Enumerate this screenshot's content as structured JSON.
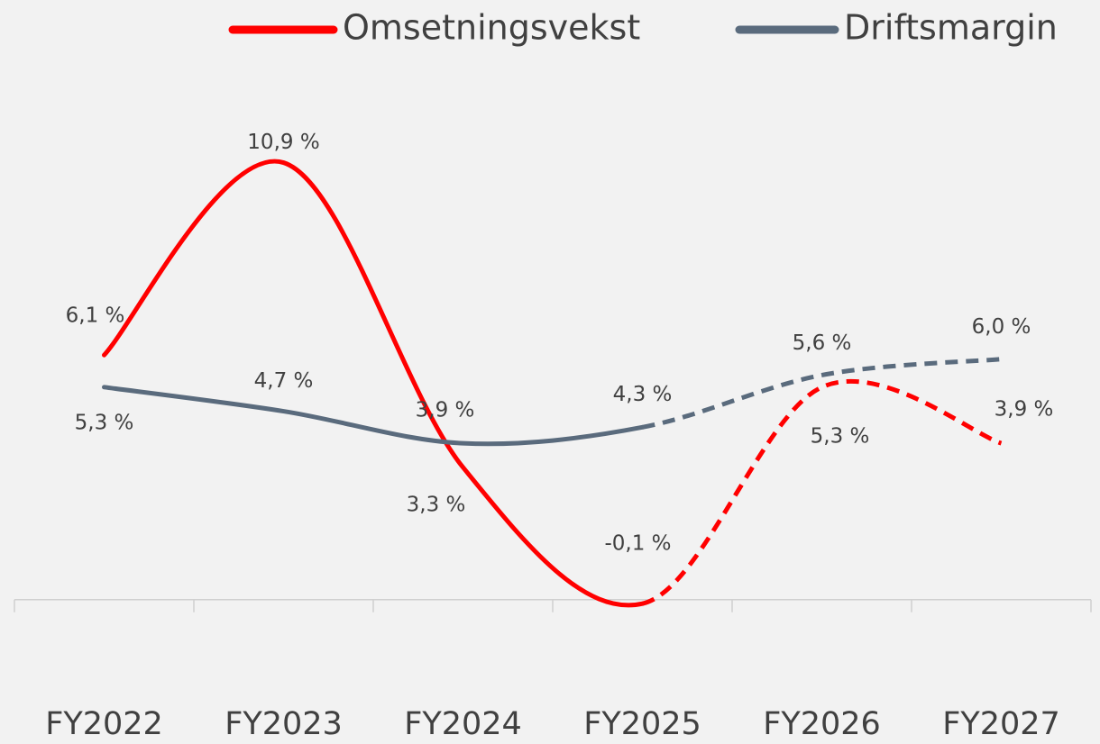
{
  "chart_data": {
    "type": "line",
    "categories": [
      "FY2022",
      "FY2023",
      "FY2024",
      "FY2025",
      "FY2026",
      "FY2027"
    ],
    "series": [
      {
        "name": "Omsetningsvekst",
        "color": "#ff0000",
        "values": [
          6.1,
          10.9,
          3.3,
          -0.1,
          5.3,
          3.9
        ],
        "value_labels": [
          "6,1 %",
          "10,9 %",
          "3,3 %",
          "-0,1 %",
          "5,3 %",
          "3,9 %"
        ]
      },
      {
        "name": "Driftsmargin",
        "color": "#5a6b7d",
        "values": [
          5.3,
          4.7,
          3.9,
          4.3,
          5.6,
          6.0
        ],
        "value_labels": [
          "5,3 %",
          "4,7 %",
          "3,9 %",
          "4,3 %",
          "5,6 %",
          "6,0 %"
        ]
      }
    ],
    "ylim": [
      -0.5,
      12
    ],
    "dashed_from_index": 3,
    "smooth": true
  }
}
